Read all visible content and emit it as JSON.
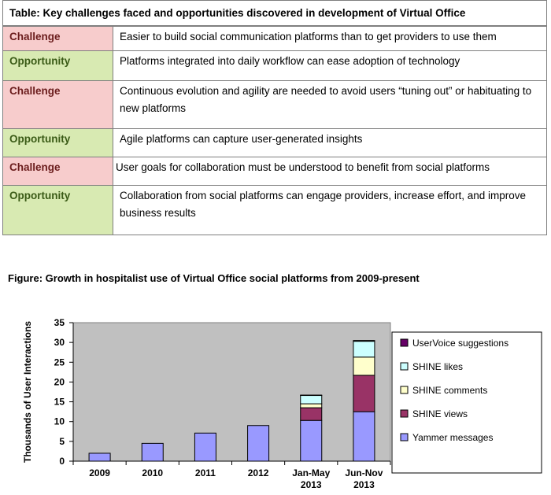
{
  "table": {
    "title": "Table: Key challenges faced and opportunities discovered in development of Virtual Office",
    "rows": [
      {
        "type": "challenge",
        "label": "Challenge",
        "text": "Easier to build social communication platforms than to get providers to use them"
      },
      {
        "type": "opportunity",
        "label": "Opportunity",
        "text": "Platforms integrated into daily workflow can ease adoption of technology"
      },
      {
        "type": "challenge",
        "label": "Challenge",
        "text": "Continuous evolution and agility are needed to avoid users “tuning out” or habituating to new platforms"
      },
      {
        "type": "opportunity",
        "label": "Opportunity",
        "text": "Agile platforms can capture user-generated insights"
      },
      {
        "type": "challenge",
        "label": "Challenge",
        "text": "User goals for collaboration must be understood to benefit from social platforms"
      },
      {
        "type": "opportunity",
        "label": "Opportunity",
        "text": "Collaboration from social platforms can engage providers, increase effort, and improve business results"
      }
    ],
    "colors": {
      "challenge": "#f7cccc",
      "opportunity": "#d8eab2"
    }
  },
  "figure": {
    "title": "Figure:  Growth in hospitalist use of Virtual Office social platforms from 2009-present"
  },
  "chart_data": {
    "type": "bar",
    "stacked": true,
    "categories": [
      [
        "2009"
      ],
      [
        "2010"
      ],
      [
        "2011"
      ],
      [
        "2012"
      ],
      [
        "Jan-May",
        "2013"
      ],
      [
        "Jun-Nov",
        "2013"
      ]
    ],
    "ylabel": "Thousands  of User Interactions",
    "ylim": [
      0,
      35
    ],
    "yticks": [
      0,
      5,
      10,
      15,
      20,
      25,
      30,
      35
    ],
    "grid": false,
    "plot_background": "#c0c0c0",
    "legend_position": "right",
    "series": [
      {
        "name": "Yammer messages",
        "color": "#9999ff",
        "values": [
          2,
          4.5,
          7.1,
          9,
          10.3,
          12.5
        ]
      },
      {
        "name": "SHINE views",
        "color": "#993366",
        "values": [
          0,
          0,
          0,
          0,
          3.2,
          9.2
        ]
      },
      {
        "name": "SHINE comments",
        "color": "#ffffcc",
        "values": [
          0,
          0,
          0,
          0,
          1.0,
          4.6
        ]
      },
      {
        "name": "SHINE likes",
        "color": "#ccffff",
        "values": [
          0,
          0,
          0,
          0,
          2.1,
          4.0
        ]
      },
      {
        "name": "UserVoice suggestions",
        "color": "#660066",
        "values": [
          0,
          0,
          0,
          0,
          0.1,
          0.2
        ]
      }
    ]
  }
}
